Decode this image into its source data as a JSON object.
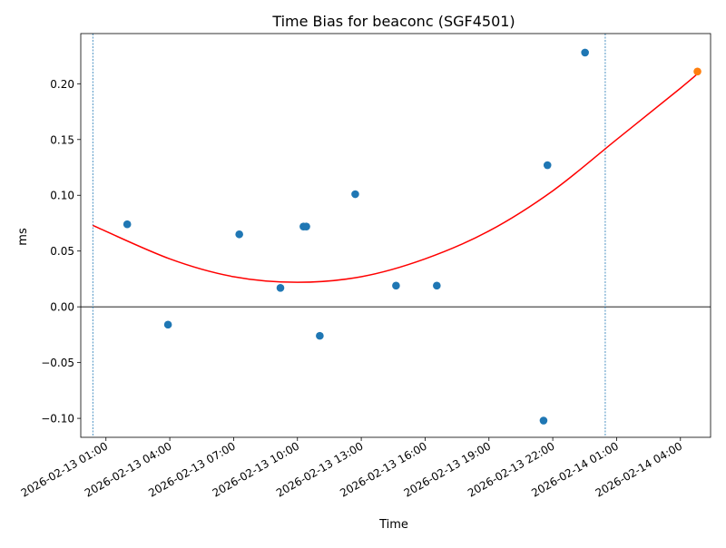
{
  "chart_data": {
    "type": "scatter",
    "title": "Time Bias for beaconc (SGF4501)",
    "xlabel": "Time",
    "ylabel": "ms",
    "xlim": [
      "2026-02-12 23:49",
      "2026-02-14 05:25"
    ],
    "ylim": [
      -0.117,
      0.245
    ],
    "y_ticks": [
      -0.1,
      -0.05,
      0.0,
      0.05,
      0.1,
      0.15,
      0.2
    ],
    "y_tick_labels": [
      "−0.10",
      "−0.05",
      "0.00",
      "0.05",
      "0.10",
      "0.15",
      "0.20"
    ],
    "x_ticks": [
      "2026-02-13 01:00",
      "2026-02-13 04:00",
      "2026-02-13 07:00",
      "2026-02-13 10:00",
      "2026-02-13 13:00",
      "2026-02-13 16:00",
      "2026-02-13 19:00",
      "2026-02-13 22:00",
      "2026-02-14 01:00",
      "2026-02-14 04:00"
    ],
    "x_tick_labels": [
      "2026-02-13 01:00",
      "2026-02-13 04:00",
      "2026-02-13 07:00",
      "2026-02-13 10:00",
      "2026-02-13 13:00",
      "2026-02-13 16:00",
      "2026-02-13 19:00",
      "2026-02-13 22:00",
      "2026-02-14 01:00",
      "2026-02-14 04:00"
    ],
    "grid": false,
    "zero_line": true,
    "vlines": [
      "2026-02-13 00:23",
      "2026-02-14 00:28"
    ],
    "series": [
      {
        "color": "#1f77b4",
        "points": [
          {
            "x": "2026-02-13 02:00",
            "y": 0.074
          },
          {
            "x": "2026-02-13 03:55",
            "y": -0.016
          },
          {
            "x": "2026-02-13 07:16",
            "y": 0.065
          },
          {
            "x": "2026-02-13 09:12",
            "y": 0.017
          },
          {
            "x": "2026-02-13 10:17",
            "y": 0.072
          },
          {
            "x": "2026-02-13 10:25",
            "y": 0.072
          },
          {
            "x": "2026-02-13 11:03",
            "y": -0.026
          },
          {
            "x": "2026-02-13 12:43",
            "y": 0.101
          },
          {
            "x": "2026-02-13 14:38",
            "y": 0.019
          },
          {
            "x": "2026-02-13 16:33",
            "y": 0.019
          },
          {
            "x": "2026-02-13 21:34",
            "y": -0.102
          },
          {
            "x": "2026-02-13 21:45",
            "y": 0.127
          },
          {
            "x": "2026-02-13 23:31",
            "y": 0.228
          }
        ]
      },
      {
        "color": "#ff7f0e",
        "points": [
          {
            "x": "2026-02-14 04:48",
            "y": 0.211
          }
        ]
      }
    ],
    "fit": {
      "color": "#ff0000",
      "points": [
        {
          "x": "2026-02-13 00:23",
          "y": 0.073
        },
        {
          "x": "2026-02-13 04:00",
          "y": 0.043
        },
        {
          "x": "2026-02-13 07:00",
          "y": 0.027
        },
        {
          "x": "2026-02-13 10:00",
          "y": 0.022
        },
        {
          "x": "2026-02-13 13:00",
          "y": 0.027
        },
        {
          "x": "2026-02-13 16:00",
          "y": 0.043
        },
        {
          "x": "2026-02-13 19:00",
          "y": 0.068
        },
        {
          "x": "2026-02-13 22:00",
          "y": 0.104
        },
        {
          "x": "2026-02-14 01:00",
          "y": 0.15
        },
        {
          "x": "2026-02-14 04:00",
          "y": 0.196
        },
        {
          "x": "2026-02-14 04:48",
          "y": 0.209
        }
      ]
    }
  }
}
